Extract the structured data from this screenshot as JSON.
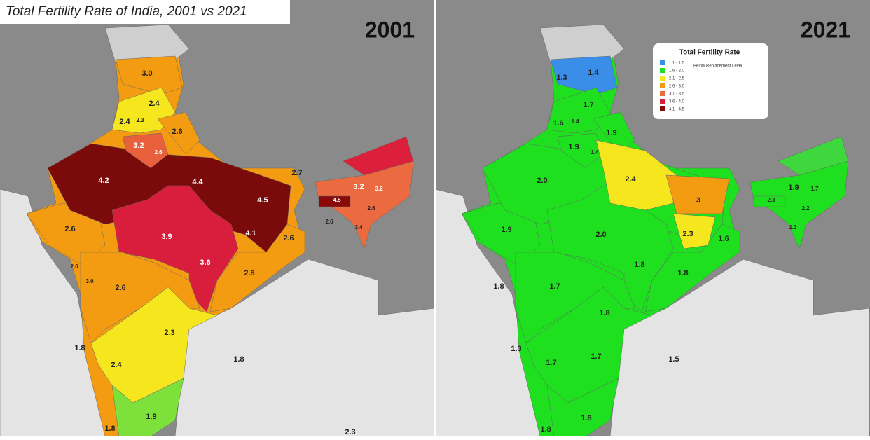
{
  "header": {
    "title": "Total Fertility Rate of India, 2001 vs 2021"
  },
  "maps": [
    {
      "year": "2001",
      "labels": [
        "3.0",
        "2.4",
        "2.4",
        "2.3",
        "2.6",
        "3.2",
        "2.6",
        "4.2",
        "4.4",
        "4.5",
        "4.1",
        "3.9",
        "3.6",
        "2.6",
        "2.8",
        "2.6",
        "2.7",
        "3.2",
        "3.2",
        "4.5",
        "2.6",
        "2.6",
        "3.4",
        "2.6",
        "3.0",
        "2.6",
        "2.3",
        "1.8",
        "2.4",
        "1.8",
        "1.9",
        "1.8",
        "2.3"
      ]
    },
    {
      "year": "2021",
      "legend": {
        "title": "Total Fertility Rate",
        "items": [
          "1.1 - 1.5",
          "1.6 - 2.0",
          "2.1 - 2.5",
          "2.6 - 3.0",
          "3.1 - 3.5",
          "3.6 - 4.0",
          "4.1 - 4.5"
        ],
        "note": "Below Replacement Level"
      },
      "labels": [
        "1.3",
        "1.4",
        "1.7",
        "1.6",
        "1.4",
        "1.9",
        "1.9",
        "1.4",
        "2.0",
        "2.4",
        "3",
        "1.9",
        "1.7",
        "2.3",
        "2.2",
        "1.3",
        "1.9",
        "2.0",
        "2.3",
        "1.6",
        "1.8",
        "1.8",
        "1.8",
        "1.7",
        "1.8",
        "1.3",
        "1.7",
        "1.7",
        "1.5",
        "1.8",
        "1.8"
      ]
    }
  ]
}
